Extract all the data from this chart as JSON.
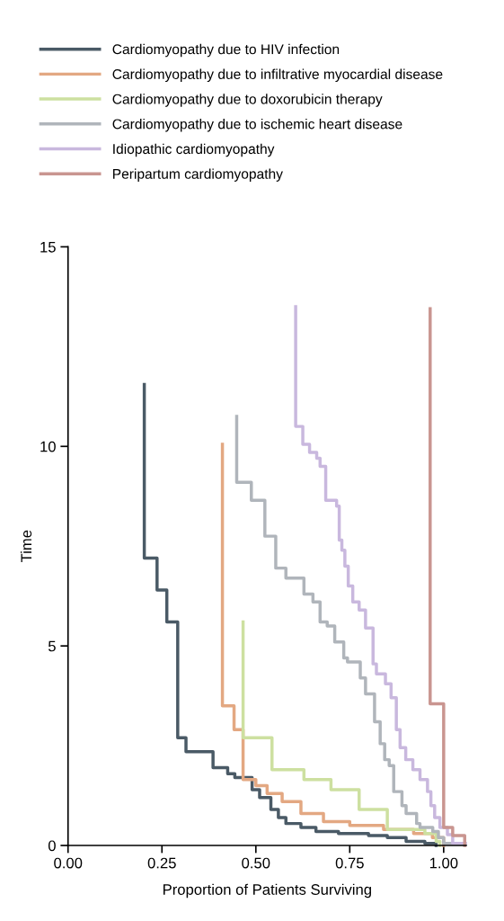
{
  "chart_data": {
    "type": "step",
    "xlabel": "Proportion of Patients Surviving",
    "ylabel": "Time",
    "xlim": [
      0,
      1.06
    ],
    "xticks": [
      {
        "value": 0,
        "label": "0.00"
      },
      {
        "value": 0.25,
        "label": "0.25"
      },
      {
        "value": 0.5,
        "label": "0.50"
      },
      {
        "value": 0.75,
        "label": "0.75"
      },
      {
        "value": 1,
        "label": "1.00"
      }
    ],
    "ylim": [
      0,
      15
    ],
    "yticks": [
      0,
      5,
      10,
      15
    ],
    "grid": false,
    "legend": "top",
    "marker": "none",
    "line_style": "solid",
    "series": [
      {
        "name": "Cardiomyopathy due to HIV infection",
        "color": "#4a5a66",
        "x": [
          0.203,
          0.237,
          0.263,
          0.292,
          0.314,
          0.386,
          0.425,
          0.444,
          0.49,
          0.51,
          0.54,
          0.56,
          0.58,
          0.62,
          0.66,
          0.72,
          0.8,
          0.85,
          0.9,
          0.95,
          0.98,
          0.98
        ],
        "values": [
          11.55,
          7.2,
          6.4,
          5.6,
          2.7,
          2.35,
          1.95,
          1.8,
          1.7,
          1.4,
          1.2,
          0.9,
          0.7,
          0.55,
          0.45,
          0.35,
          0.3,
          0.25,
          0.2,
          0.1,
          0.05,
          0
        ]
      },
      {
        "name": "Cardiomyopathy due to infiltrative myocardial disease",
        "color": "#e3a882",
        "x": [
          0.411,
          0.442,
          0.466,
          0.5,
          0.53,
          0.57,
          0.62,
          0.68,
          0.75,
          0.84,
          0.92,
          0.97,
          1.0,
          1.0
        ],
        "values": [
          10.05,
          3.5,
          2.9,
          1.65,
          1.5,
          1.3,
          1.1,
          0.8,
          0.6,
          0.5,
          0.4,
          0.3,
          0.2,
          0
        ]
      },
      {
        "name": "Cardiomyopathy due to doxorubicin therapy",
        "color": "#cde0a0",
        "x": [
          0.466,
          0.543,
          0.628,
          0.7,
          0.775,
          0.85,
          0.95,
          0.98,
          0.99,
          0.99
        ],
        "values": [
          5.6,
          2.7,
          1.9,
          1.65,
          1.4,
          0.9,
          0.4,
          0.3,
          0.1,
          0
        ]
      },
      {
        "name": "Cardiomyopathy due to ischemic heart disease",
        "color": "#b0b5bb",
        "x": [
          0.449,
          0.488,
          0.524,
          0.553,
          0.58,
          0.628,
          0.652,
          0.671,
          0.69,
          0.71,
          0.734,
          0.744,
          0.778,
          0.792,
          0.816,
          0.831,
          0.843,
          0.855,
          0.867,
          0.889,
          0.9,
          0.928,
          0.937,
          0.971,
          0.986,
          1.0,
          1.02
        ],
        "values": [
          10.75,
          9.1,
          8.65,
          7.75,
          6.95,
          6.7,
          6.3,
          6.1,
          5.6,
          5.5,
          5.1,
          4.7,
          4.6,
          4.2,
          3.8,
          3.1,
          2.55,
          2.15,
          2.0,
          1.35,
          1.0,
          0.8,
          0.55,
          0.45,
          0.35,
          0.2,
          0.05
        ]
      },
      {
        "name": "Idiopathic cardiomyopathy",
        "color": "#c9b8de",
        "x": [
          0.606,
          0.625,
          0.643,
          0.662,
          0.671,
          0.686,
          0.715,
          0.722,
          0.729,
          0.737,
          0.746,
          0.758,
          0.775,
          0.792,
          0.812,
          0.821,
          0.845,
          0.86,
          0.874,
          0.884,
          0.899,
          0.918,
          0.937,
          0.957,
          0.966,
          0.976,
          0.99,
          1.01,
          1.024,
          1.058
        ],
        "values": [
          13.5,
          10.5,
          10.05,
          9.85,
          9.7,
          9.5,
          8.65,
          8.5,
          7.65,
          7.4,
          7.0,
          6.5,
          6.1,
          5.9,
          5.45,
          4.55,
          4.3,
          4.05,
          3.7,
          2.9,
          2.45,
          2.15,
          1.9,
          1.65,
          1.35,
          1.0,
          0.7,
          0.45,
          0.27,
          0.05
        ]
      },
      {
        "name": "Peripartum cardiomyopathy",
        "color": "#c99590",
        "x": [
          0.964,
          1.0,
          1.024,
          1.056,
          1.056
        ],
        "values": [
          13.45,
          3.55,
          0.45,
          0.25,
          0
        ]
      }
    ]
  }
}
